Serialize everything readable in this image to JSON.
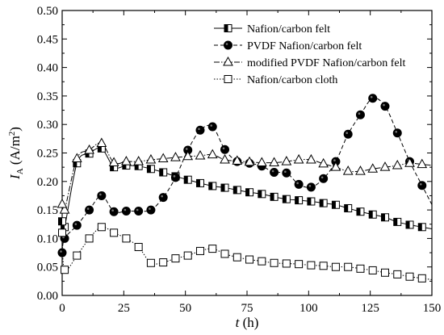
{
  "chart_data": {
    "type": "line",
    "xlabel": {
      "var": "t",
      "unit": " (h)"
    },
    "ylabel": {
      "var": "I",
      "sub": "A",
      "unit_pre": " (A/m",
      "sup": "2",
      "unit_post": ")"
    },
    "xlim": [
      0,
      150
    ],
    "ylim": [
      0,
      0.5
    ],
    "x_ticks": [
      0,
      25,
      50,
      75,
      100,
      125,
      150
    ],
    "x_tick_labels": [
      "0",
      "25",
      "50",
      "75",
      "100",
      "125",
      "150"
    ],
    "y_ticks": [
      0.0,
      0.05,
      0.1,
      0.15,
      0.2,
      0.25,
      0.3,
      0.35,
      0.4,
      0.45,
      0.5
    ],
    "y_tick_labels": [
      "0.00",
      "0.05",
      "0.10",
      "0.15",
      "0.20",
      "0.25",
      "0.30",
      "0.35",
      "0.40",
      "0.45",
      "0.50"
    ],
    "grid": false,
    "legend_position": "top-right",
    "series": [
      {
        "name": "Nafion/carbon felt",
        "line_style": "solid",
        "marker": "half-filled-square",
        "x": [
          0,
          1,
          6,
          11,
          16,
          21,
          26,
          31,
          36,
          41,
          46,
          51,
          56,
          61,
          66,
          71,
          76,
          81,
          86,
          91,
          96,
          101,
          106,
          111,
          116,
          121,
          126,
          131,
          136,
          141,
          146
        ],
        "y": [
          0.13,
          0.12,
          0.232,
          0.249,
          0.258,
          0.225,
          0.228,
          0.227,
          0.222,
          0.216,
          0.209,
          0.203,
          0.197,
          0.192,
          0.189,
          0.185,
          0.181,
          0.178,
          0.173,
          0.169,
          0.167,
          0.165,
          0.162,
          0.159,
          0.153,
          0.147,
          0.142,
          0.137,
          0.129,
          0.124,
          0.12
        ]
      },
      {
        "name": "PVDF Nafion/carbon felt",
        "line_style": "dashed",
        "marker": "filled-circle",
        "x": [
          0,
          1,
          6,
          11,
          16,
          21,
          26,
          31,
          36,
          41,
          46,
          51,
          56,
          61,
          66,
          71,
          76,
          81,
          86,
          91,
          96,
          101,
          106,
          111,
          116,
          121,
          126,
          131,
          136,
          141,
          146
        ],
        "y": [
          0.075,
          0.1,
          0.123,
          0.15,
          0.175,
          0.147,
          0.148,
          0.148,
          0.15,
          0.172,
          0.207,
          0.255,
          0.29,
          0.296,
          0.256,
          0.235,
          0.232,
          0.227,
          0.216,
          0.215,
          0.195,
          0.19,
          0.205,
          0.235,
          0.283,
          0.317,
          0.346,
          0.332,
          0.285,
          0.235,
          0.193
        ]
      },
      {
        "name": "modified PVDF Nafion/carbon felt",
        "line_style": "dash-dot",
        "marker": "open-triangle",
        "x": [
          0,
          1,
          6,
          11,
          16,
          21,
          26,
          31,
          36,
          41,
          46,
          51,
          56,
          61,
          66,
          71,
          76,
          81,
          86,
          91,
          96,
          101,
          106,
          111,
          116,
          121,
          126,
          131,
          136,
          141,
          146
        ],
        "y": [
          0.16,
          0.15,
          0.24,
          0.255,
          0.267,
          0.233,
          0.235,
          0.235,
          0.238,
          0.24,
          0.242,
          0.244,
          0.245,
          0.247,
          0.238,
          0.236,
          0.234,
          0.233,
          0.233,
          0.235,
          0.238,
          0.238,
          0.231,
          0.225,
          0.218,
          0.218,
          0.222,
          0.225,
          0.228,
          0.232,
          0.23
        ]
      },
      {
        "name": "Nafion/carbon cloth",
        "line_style": "dotted",
        "marker": "open-square",
        "x": [
          0,
          1,
          6,
          11,
          16,
          21,
          26,
          31,
          36,
          41,
          46,
          51,
          56,
          61,
          66,
          71,
          76,
          81,
          86,
          91,
          96,
          101,
          106,
          111,
          116,
          121,
          126,
          131,
          136,
          141,
          146
        ],
        "y": [
          0.11,
          0.045,
          0.07,
          0.1,
          0.12,
          0.11,
          0.1,
          0.085,
          0.057,
          0.058,
          0.065,
          0.07,
          0.078,
          0.082,
          0.073,
          0.067,
          0.063,
          0.06,
          0.057,
          0.056,
          0.055,
          0.053,
          0.052,
          0.05,
          0.05,
          0.047,
          0.044,
          0.04,
          0.037,
          0.033,
          0.03
        ]
      }
    ]
  }
}
